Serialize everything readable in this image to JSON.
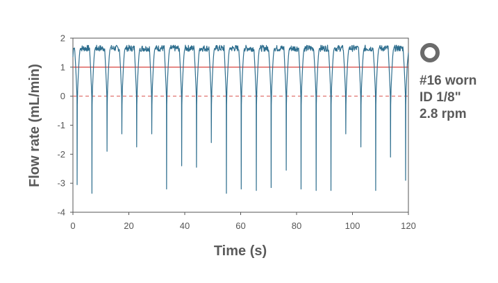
{
  "chart_data": {
    "type": "line",
    "xlabel": "Time (s)",
    "ylabel": "Flow rate (mL/min)",
    "xlim": [
      0,
      120
    ],
    "ylim": [
      -4,
      2
    ],
    "xticks": [
      0,
      20,
      40,
      60,
      80,
      100,
      120
    ],
    "yticks": [
      -4,
      -3,
      -2,
      -1,
      0,
      1,
      2
    ],
    "grid": false,
    "reference_lines": [
      {
        "y": 1,
        "style": "solid",
        "color": "#d9534f"
      },
      {
        "y": 0,
        "style": "dashed",
        "color": "#d9534f"
      }
    ],
    "series": [
      {
        "color": "#2e6e8e",
        "start": {
          "x": 0,
          "y": 1.35
        },
        "plateau": 1.65,
        "dip_times": [
          1.5,
          6.8,
          12.2,
          17.5,
          22.8,
          28.2,
          33.5,
          38.9,
          44.2,
          49.5,
          54.9,
          60.2,
          65.6,
          70.9,
          76.3,
          81.6,
          87.0,
          92.3,
          97.6,
          103.0,
          108.3,
          113.6,
          119.0
        ],
        "dip_minima": [
          -3.05,
          -3.35,
          -1.9,
          -1.3,
          -1.75,
          -1.3,
          -3.2,
          -2.4,
          -2.45,
          -1.6,
          -3.35,
          -3.2,
          -3.25,
          -3.15,
          -2.55,
          -3.2,
          -3.25,
          -3.25,
          -1.3,
          -1.75,
          -3.25,
          -2.1,
          -2.9
        ]
      }
    ]
  },
  "legend": {
    "icon": "ring-icon",
    "lines": [
      "#16 worn",
      "ID 1/8\"",
      "2.8 rpm"
    ]
  }
}
